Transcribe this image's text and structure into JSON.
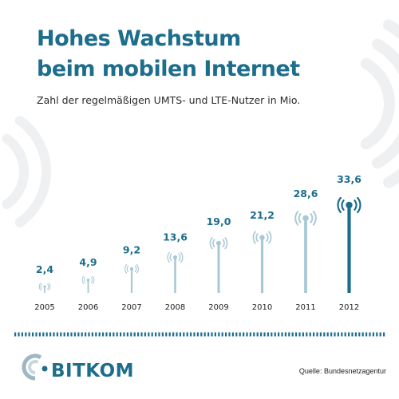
{
  "header": {
    "title_line1": "Hohes Wachstum",
    "title_line2": "beim mobilen Internet",
    "subtitle": "Zahl der regelmäßigen UMTS- und LTE-Nutzer in Mio."
  },
  "footer": {
    "brand": "BITKOM",
    "source": "Quelle: Bundesnetzagentur"
  },
  "colors": {
    "title": "#1d6d8c",
    "bar": "#a9c8d6",
    "bar_highlight": "#1d6d8c",
    "deco_arc": "#eef0f1",
    "separator": "#1d6d8c"
  },
  "chart_data": {
    "type": "bar",
    "title": "Hohes Wachstum beim mobilen Internet",
    "subtitle": "Zahl der regelmäßigen UMTS- und LTE-Nutzer in Mio.",
    "categories": [
      "2005",
      "2006",
      "2007",
      "2008",
      "2009",
      "2010",
      "2011",
      "2012"
    ],
    "values": [
      2.4,
      4.9,
      9.2,
      13.6,
      19.0,
      21.2,
      28.6,
      33.6
    ],
    "value_labels": [
      "2,4",
      "4,9",
      "9,2",
      "13,6",
      "19,0",
      "21,2",
      "28,6",
      "33,6"
    ],
    "ylim": [
      0,
      33.6
    ],
    "grid": false,
    "legend": "none",
    "highlight_index": 7
  }
}
